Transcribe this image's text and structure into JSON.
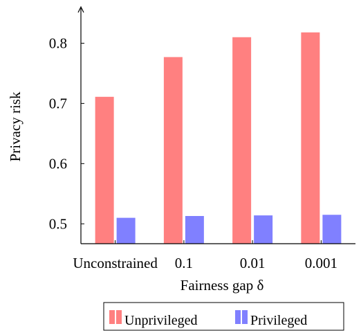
{
  "chart_data": {
    "type": "bar",
    "title": "",
    "xlabel": "Fairness gap δ",
    "ylabel": "Privacy risk",
    "categories": [
      "Unconstrained",
      "0.1",
      "0.01",
      "0.001"
    ],
    "series": [
      {
        "name": "Unprivileged",
        "color": "#ff8080",
        "values": [
          0.711,
          0.777,
          0.81,
          0.818
        ]
      },
      {
        "name": "Privileged",
        "color": "#8080ff",
        "values": [
          0.51,
          0.513,
          0.514,
          0.515
        ]
      }
    ],
    "ylim": [
      0.467,
      0.858
    ],
    "yticks": [
      0.5,
      0.6,
      0.7,
      0.8
    ],
    "ytick_labels": [
      "0.5",
      "0.6",
      "0.7",
      "0.8"
    ],
    "grid": false,
    "legend": "bottom-center"
  }
}
